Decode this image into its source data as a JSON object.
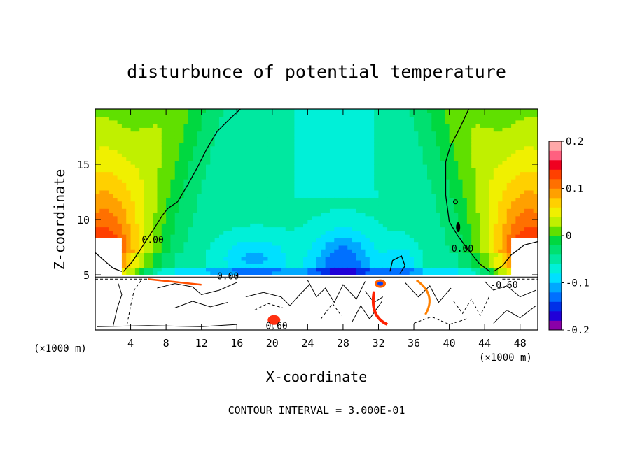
{
  "chart_data": {
    "type": "heatmap",
    "title": "disturbunce of potential temperature",
    "xlabel": "X-coordinate",
    "ylabel": "Z-coordinate",
    "x_unit": "(×1000 m)",
    "footer": "CONTOUR INTERVAL = 3.000E-01",
    "xlim": [
      0,
      50
    ],
    "ylim": [
      0,
      20
    ],
    "x_ticks": [
      4,
      8,
      12,
      16,
      20,
      24,
      28,
      32,
      36,
      40,
      44,
      48
    ],
    "y_ticks": [
      5,
      10,
      15
    ],
    "colorbar": {
      "range": [
        -0.2,
        0.2
      ],
      "tick_labels": [
        "0.2",
        "0.1",
        "0",
        "-0.1",
        "-0.2"
      ],
      "tick_values": [
        0.2,
        0.1,
        0,
        -0.1,
        -0.2
      ],
      "colors": [
        "#8a00a8",
        "#2000d8",
        "#0030e8",
        "#0070ff",
        "#00a8ff",
        "#00e0ff",
        "#00f0d8",
        "#00e8a0",
        "#00e070",
        "#00d840",
        "#60e000",
        "#c0f000",
        "#f0f000",
        "#ffd000",
        "#ffa000",
        "#ff7000",
        "#ff4000",
        "#f00020",
        "#ff6080",
        "#ffa8a8"
      ]
    },
    "contour_labels": [
      {
        "x": 6.5,
        "z": 8.2,
        "text": "0.00"
      },
      {
        "x": 15,
        "z": 4.9,
        "text": "0.00"
      },
      {
        "x": 41.5,
        "z": 7.4,
        "text": "0.00"
      },
      {
        "x": 20.5,
        "z": 0.4,
        "text": "0.60"
      },
      {
        "x": 46.2,
        "z": 4.1,
        "text": "-0.60"
      }
    ]
  }
}
